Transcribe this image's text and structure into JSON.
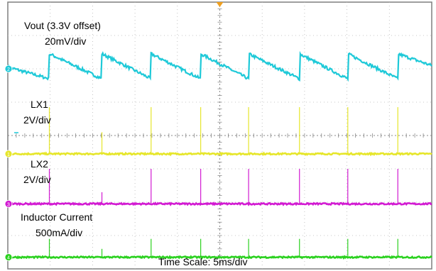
{
  "labels": {
    "vout_title": "Vout (3.3V offset)",
    "vout_scale": "20mV/div",
    "lx1_title": "LX1",
    "lx1_scale": "2V/div",
    "lx2_title": "LX2",
    "lx2_scale": "2V/div",
    "il_title": "Inductor Current",
    "il_scale": "500mA/div",
    "time_scale": "Time Scale: 5ms/div"
  },
  "chart_data": {
    "type": "line",
    "grid": true,
    "x_divisions": 10,
    "y_divisions": 8,
    "x_unit": "div",
    "channel_colors": {
      "vout": "#1ec9d8",
      "lx1": "#e6e62a",
      "lx2": "#d21ad2",
      "inductor_current": "#2bd11f"
    },
    "channel_markers": [
      "2",
      "1",
      "3",
      "4"
    ],
    "trigger_marker_x_div": 5,
    "switching_events_x_div": [
      0.98,
      2.22,
      3.38,
      4.55,
      5.68,
      6.88,
      8.02,
      9.2
    ],
    "series": [
      {
        "name": "Vout (3.3V offset)",
        "scale": "20mV/div",
        "baseline_div": 6.0,
        "shape": "sawtooth",
        "reset_high_div": 6.45,
        "decay_low_div": 5.7,
        "x_start_div": 0,
        "x_end_div": 10
      },
      {
        "name": "LX1",
        "scale": "2V/div",
        "baseline_div": 3.45,
        "pulse_peak_div": [
          4.85,
          4.1,
          4.85,
          4.85,
          4.85,
          4.85,
          4.85,
          4.85
        ]
      },
      {
        "name": "LX2",
        "scale": "2V/div",
        "baseline_div": 1.95,
        "pulse_peak_div": [
          3.0,
          2.3,
          3.0,
          3.0,
          3.0,
          3.0,
          3.0,
          3.0
        ]
      },
      {
        "name": "Inductor Current",
        "scale": "500mA/div",
        "baseline_div": 0.35,
        "pulse_peak_div": [
          0.9,
          0.6,
          0.9,
          0.9,
          0.9,
          0.9,
          0.9,
          0.9
        ]
      }
    ]
  }
}
